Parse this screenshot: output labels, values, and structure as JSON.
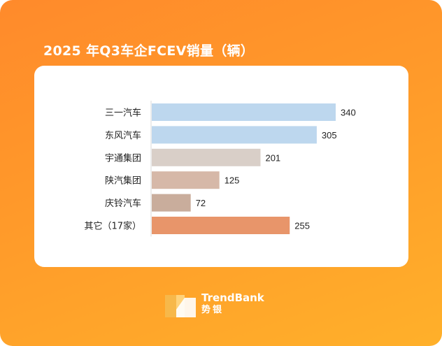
{
  "chart_data": {
    "type": "bar",
    "orientation": "horizontal",
    "title": "2025 年Q3车企FCEV销量（辆）",
    "categories": [
      "三一汽车",
      "东风汽车",
      "宇通集团",
      "陕汽集团",
      "庆铃汽车",
      "其它（17家）"
    ],
    "values": [
      340,
      305,
      201,
      125,
      72,
      255
    ],
    "colors": [
      "#bdd7ee",
      "#bdd7ee",
      "#d9cfc8",
      "#d6b8a8",
      "#c9ad9c",
      "#e8956a"
    ],
    "xlim": [
      0,
      340
    ],
    "grid": false,
    "legend": false
  },
  "brand": {
    "name": "TrendBank",
    "subtitle": "势银"
  },
  "colors": {
    "background_start": "#ff8a2b",
    "background_end": "#ffb02a",
    "card": "#ffffff"
  }
}
